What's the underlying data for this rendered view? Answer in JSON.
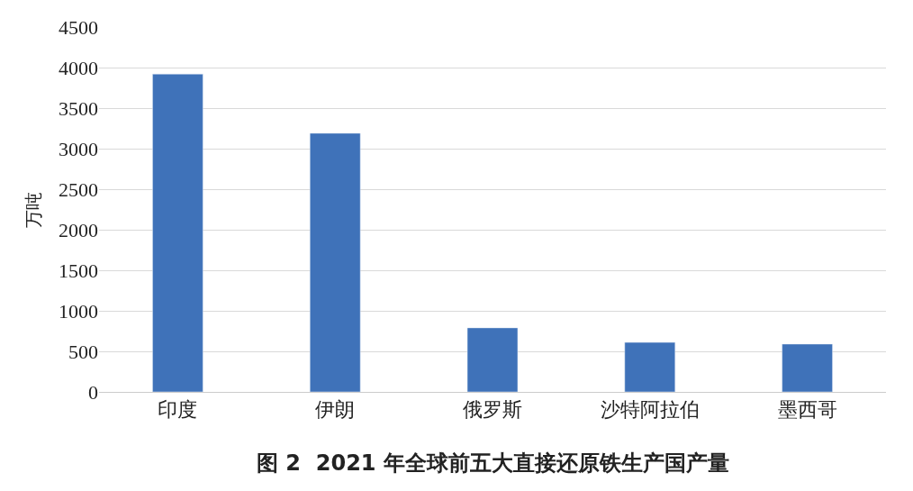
{
  "chart_data": {
    "type": "bar",
    "title": "图 2  2021 年全球前五大直接还原铁生产国产量",
    "ylabel": "万吨",
    "categories": [
      "印度",
      "伊朗",
      "俄罗斯",
      "沙特阿拉伯",
      "墨西哥"
    ],
    "values": [
      3920,
      3190,
      790,
      610,
      590
    ],
    "color": "#3f72b9",
    "ylim": [
      0,
      4500
    ],
    "yticks": [
      0,
      500,
      1000,
      1500,
      2000,
      2500,
      3000,
      3500,
      4000,
      4500
    ],
    "grid": "y",
    "legend": false
  }
}
